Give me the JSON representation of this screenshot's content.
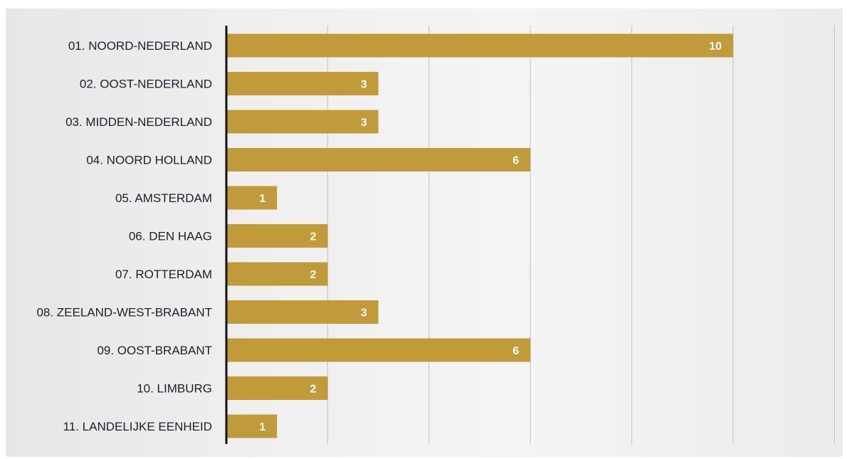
{
  "chart_data": {
    "type": "bar",
    "orientation": "horizontal",
    "categories": [
      "01. NOORD-NEDERLAND",
      "02. OOST-NEDERLAND",
      "03. MIDDEN-NEDERLAND",
      "04. NOORD HOLLAND",
      "05. AMSTERDAM",
      "06. DEN HAAG",
      "07. ROTTERDAM",
      "08. ZEELAND-WEST-BRABANT",
      "09. OOST-BRABANT",
      "10. LIMBURG",
      "11. LANDELIJKE EENHEID"
    ],
    "values": [
      10,
      3,
      3,
      6,
      1,
      2,
      2,
      3,
      6,
      2,
      1
    ],
    "data_labels": [
      "10",
      "3",
      "3",
      "6",
      "1",
      "2",
      "2",
      "3",
      "6",
      "2",
      "1"
    ],
    "xlim": [
      0,
      12
    ],
    "grid": "vertical",
    "bar_color": "#c19a39",
    "value_label_color": "#ffffff"
  }
}
